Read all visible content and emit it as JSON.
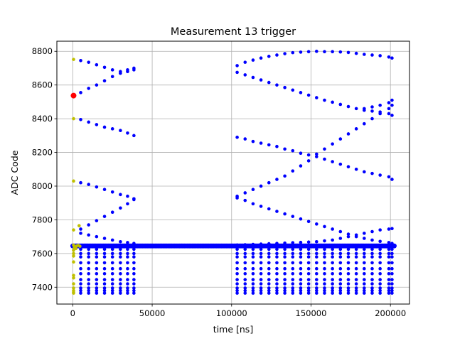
{
  "chart_data": {
    "type": "scatter",
    "title": "Measurement 13 trigger",
    "xlabel": "time [ns]",
    "ylabel": "ADC Code",
    "xlim": [
      -10000,
      212000
    ],
    "ylim": [
      7300,
      8860
    ],
    "xticks": [
      0,
      50000,
      100000,
      150000,
      200000
    ],
    "xtick_labels": [
      "0",
      "50000",
      "100000",
      "150000",
      "200000"
    ],
    "yticks": [
      7400,
      7600,
      7800,
      8000,
      8200,
      8400,
      8600,
      8800
    ],
    "ytick_labels": [
      "7400",
      "7600",
      "7800",
      "8000",
      "8200",
      "8400",
      "8600",
      "8800"
    ],
    "grid": true,
    "colors": {
      "blue": "#0000ff",
      "yellow": "#bfbf00",
      "red": "#ff0000"
    },
    "series": [
      {
        "color": "#0000ff",
        "marker_size": 2.3,
        "points": [
          [
            5000,
            8745
          ],
          [
            10000,
            8735
          ],
          [
            15000,
            8720
          ],
          [
            20000,
            8705
          ],
          [
            25000,
            8690
          ],
          [
            30000,
            8680
          ],
          [
            34500,
            8690
          ],
          [
            38500,
            8700
          ],
          [
            5000,
            8555
          ],
          [
            10000,
            8580
          ],
          [
            15000,
            8600
          ],
          [
            20000,
            8625
          ],
          [
            25000,
            8650
          ],
          [
            30000,
            8670
          ],
          [
            34500,
            8680
          ],
          [
            38500,
            8690
          ],
          [
            5000,
            8395
          ],
          [
            10000,
            8380
          ],
          [
            15000,
            8365
          ],
          [
            20000,
            8350
          ],
          [
            25000,
            8340
          ],
          [
            30000,
            8330
          ],
          [
            34500,
            8315
          ],
          [
            38500,
            8300
          ],
          [
            5000,
            8020
          ],
          [
            10000,
            8010
          ],
          [
            15000,
            7995
          ],
          [
            20000,
            7980
          ],
          [
            25000,
            7965
          ],
          [
            30000,
            7950
          ],
          [
            34500,
            7940
          ],
          [
            38500,
            7925
          ],
          [
            5000,
            7745
          ],
          [
            10000,
            7770
          ],
          [
            15000,
            7795
          ],
          [
            20000,
            7820
          ],
          [
            25000,
            7845
          ],
          [
            30000,
            7870
          ],
          [
            34500,
            7895
          ],
          [
            38500,
            7920
          ],
          [
            5000,
            7720
          ],
          [
            10000,
            7710
          ],
          [
            15000,
            7700
          ],
          [
            20000,
            7690
          ],
          [
            25000,
            7680
          ],
          [
            30000,
            7670
          ],
          [
            34500,
            7665
          ],
          [
            38500,
            7660
          ],
          [
            103500,
            8715
          ],
          [
            108500,
            8735
          ],
          [
            113500,
            8748
          ],
          [
            118500,
            8760
          ],
          [
            123500,
            8770
          ],
          [
            128500,
            8778
          ],
          [
            133500,
            8786
          ],
          [
            138500,
            8792
          ],
          [
            143500,
            8795
          ],
          [
            148500,
            8798
          ],
          [
            153500,
            8800
          ],
          [
            158500,
            8798
          ],
          [
            163500,
            8798
          ],
          [
            168500,
            8796
          ],
          [
            173500,
            8793
          ],
          [
            178500,
            8788
          ],
          [
            183500,
            8782
          ],
          [
            188500,
            8778
          ],
          [
            193500,
            8774
          ],
          [
            199000,
            8766
          ],
          [
            201000,
            8760
          ],
          [
            103500,
            8675
          ],
          [
            108500,
            8660
          ],
          [
            113500,
            8645
          ],
          [
            118500,
            8630
          ],
          [
            123500,
            8615
          ],
          [
            128500,
            8600
          ],
          [
            133500,
            8585
          ],
          [
            138500,
            8570
          ],
          [
            143500,
            8555
          ],
          [
            148500,
            8540
          ],
          [
            153500,
            8525
          ],
          [
            158500,
            8510
          ],
          [
            163500,
            8498
          ],
          [
            168500,
            8485
          ],
          [
            173500,
            8472
          ],
          [
            178500,
            8460
          ],
          [
            183500,
            8450
          ],
          [
            188500,
            8445
          ],
          [
            193500,
            8440
          ],
          [
            199000,
            8430
          ],
          [
            201000,
            8420
          ],
          [
            183500,
            8460
          ],
          [
            188500,
            8470
          ],
          [
            193500,
            8480
          ],
          [
            199000,
            8495
          ],
          [
            201000,
            8510
          ],
          [
            103500,
            8290
          ],
          [
            108500,
            8280
          ],
          [
            113500,
            8265
          ],
          [
            118500,
            8255
          ],
          [
            123500,
            8245
          ],
          [
            128500,
            8235
          ],
          [
            133500,
            8220
          ],
          [
            138500,
            8210
          ],
          [
            143500,
            8195
          ],
          [
            148500,
            8185
          ],
          [
            153500,
            8175
          ],
          [
            158500,
            8160
          ],
          [
            163500,
            8145
          ],
          [
            168500,
            8130
          ],
          [
            173500,
            8115
          ],
          [
            178500,
            8100
          ],
          [
            183500,
            8085
          ],
          [
            188500,
            8075
          ],
          [
            193500,
            8065
          ],
          [
            199000,
            8055
          ],
          [
            201000,
            8040
          ],
          [
            103500,
            7940
          ],
          [
            108500,
            7960
          ],
          [
            113500,
            7980
          ],
          [
            118500,
            8000
          ],
          [
            123500,
            8020
          ],
          [
            128500,
            8040
          ],
          [
            133500,
            8060
          ],
          [
            138500,
            8090
          ],
          [
            143500,
            8120
          ],
          [
            148500,
            8150
          ],
          [
            153500,
            8190
          ],
          [
            158500,
            8220
          ],
          [
            163500,
            8250
          ],
          [
            168500,
            8280
          ],
          [
            173500,
            8310
          ],
          [
            178500,
            8340
          ],
          [
            183500,
            8370
          ],
          [
            188500,
            8400
          ],
          [
            193500,
            8430
          ],
          [
            199000,
            8460
          ],
          [
            201000,
            8480
          ],
          [
            103500,
            7930
          ],
          [
            108500,
            7915
          ],
          [
            113500,
            7895
          ],
          [
            118500,
            7880
          ],
          [
            123500,
            7865
          ],
          [
            128500,
            7850
          ],
          [
            133500,
            7835
          ],
          [
            138500,
            7820
          ],
          [
            143500,
            7805
          ],
          [
            148500,
            7790
          ],
          [
            153500,
            7775
          ],
          [
            158500,
            7760
          ],
          [
            163500,
            7745
          ],
          [
            168500,
            7730
          ],
          [
            173500,
            7715
          ],
          [
            178500,
            7700
          ],
          [
            183500,
            7690
          ],
          [
            188500,
            7680
          ],
          [
            193500,
            7672
          ],
          [
            199000,
            7665
          ],
          [
            201000,
            7660
          ],
          [
            103500,
            7650
          ],
          [
            108500,
            7652
          ],
          [
            113500,
            7654
          ],
          [
            118500,
            7656
          ],
          [
            123500,
            7658
          ],
          [
            128500,
            7660
          ],
          [
            133500,
            7662
          ],
          [
            138500,
            7664
          ],
          [
            143500,
            7666
          ],
          [
            148500,
            7668
          ],
          [
            153500,
            7670
          ],
          [
            158500,
            7675
          ],
          [
            163500,
            7680
          ],
          [
            168500,
            7690
          ],
          [
            173500,
            7700
          ],
          [
            178500,
            7710
          ],
          [
            183500,
            7720
          ],
          [
            188500,
            7730
          ],
          [
            193500,
            7740
          ],
          [
            199000,
            7745
          ],
          [
            201000,
            7748
          ]
        ]
      },
      {
        "color": "#0000ff",
        "marker_size": 3.4,
        "band": {
          "x_start": 0,
          "x_end": 203000,
          "y": 7645,
          "step": 800
        }
      },
      {
        "color": "#0000ff",
        "marker_size": 2.3,
        "grid_clusters": {
          "x_left": [
            5000,
            10000,
            15000,
            20000,
            25000,
            30000,
            34500,
            38500
          ],
          "x_right": [
            103500,
            108500,
            113500,
            118500,
            123500,
            128500,
            133500,
            138500,
            143500,
            148500,
            153500,
            158500,
            163500,
            168500,
            173500,
            178500,
            183500,
            188500,
            193500,
            199000,
            201000
          ],
          "y_rows": [
            7625,
            7600,
            7580,
            7545,
            7510,
            7480,
            7445,
            7420,
            7395,
            7380,
            7365
          ]
        }
      },
      {
        "color": "#bfbf00",
        "marker_size": 2.3,
        "points": [
          [
            500,
            8752
          ],
          [
            500,
            8400
          ],
          [
            500,
            8030
          ],
          [
            500,
            7740
          ],
          [
            4000,
            7765
          ],
          [
            500,
            7650
          ],
          [
            500,
            7620
          ],
          [
            500,
            7600
          ],
          [
            500,
            7585
          ],
          [
            500,
            7550
          ],
          [
            500,
            7470
          ],
          [
            500,
            7455
          ],
          [
            500,
            7420
          ],
          [
            500,
            7395
          ],
          [
            500,
            7380
          ],
          [
            500,
            7370
          ],
          [
            500,
            7365
          ],
          [
            1500,
            7640
          ],
          [
            2500,
            7645
          ],
          [
            3500,
            7648
          ],
          [
            4500,
            7643
          ],
          [
            1000,
            7635
          ],
          [
            2000,
            7630
          ]
        ]
      },
      {
        "color": "#ff0000",
        "marker_size": 4.0,
        "points": [
          [
            500,
            8537
          ]
        ]
      }
    ]
  }
}
